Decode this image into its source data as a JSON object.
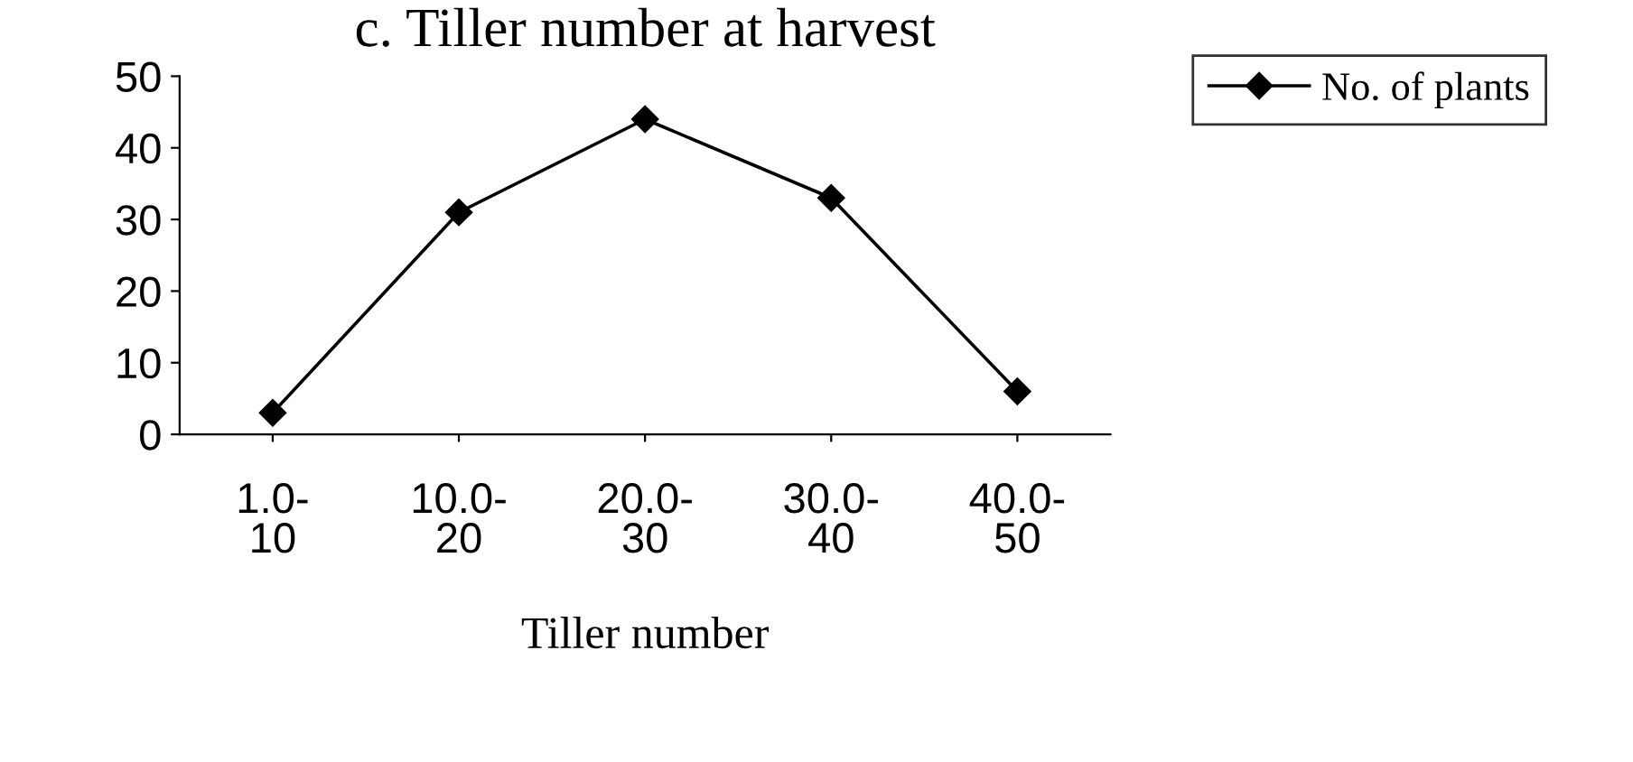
{
  "chart_data": {
    "type": "line",
    "title": "c. Tiller number at harvest",
    "xlabel": "Tiller number",
    "categories": [
      "1.0-\n10",
      "10.0-\n20",
      "20.0-\n30",
      "30.0-\n40",
      "40.0-\n50"
    ],
    "series": [
      {
        "name": "No. of plants",
        "color": "#000000",
        "values": [
          3,
          31,
          44,
          33,
          6
        ]
      }
    ],
    "ylim": [
      0,
      50
    ],
    "yticks": [
      0,
      10,
      20,
      30,
      40,
      50
    ],
    "grid": false,
    "legend": "top right",
    "marker": "diamond",
    "line_style": "solid"
  }
}
